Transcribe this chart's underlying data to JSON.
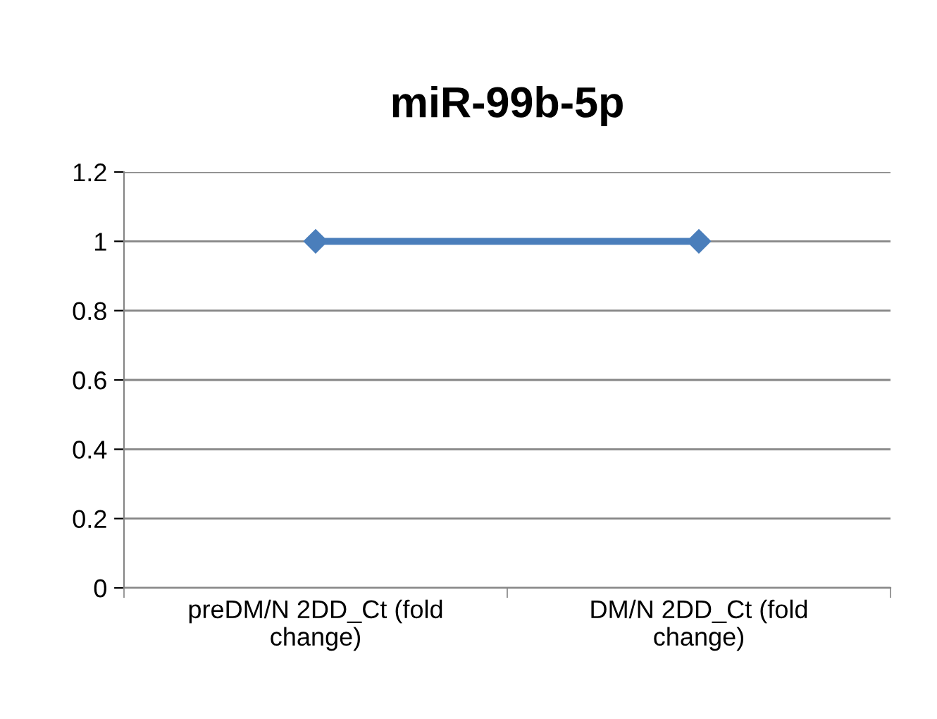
{
  "chart_data": {
    "type": "line",
    "title": "miR-99b-5p",
    "categories": [
      "preDM/N 2DD_Ct (fold change)",
      "DM/N 2DD_Ct (fold change)"
    ],
    "series": [
      {
        "color": "#4a7ebb",
        "values": [
          1,
          1
        ]
      }
    ],
    "ylim": [
      0,
      1.2
    ],
    "yticks": [
      0,
      0.2,
      0.4,
      0.6,
      0.8,
      1,
      1.2
    ],
    "grid": "y",
    "legend": false,
    "marker": "diamond",
    "line_style": "solid"
  }
}
